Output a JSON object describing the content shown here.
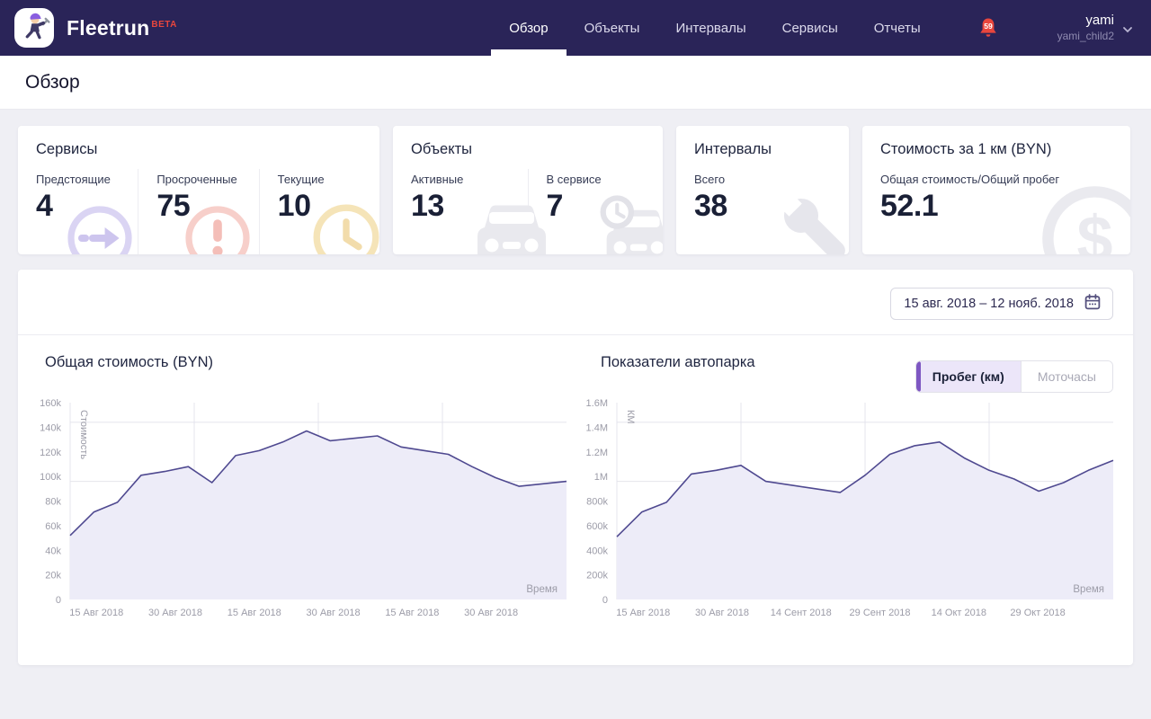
{
  "navbar": {
    "brand": "Fleetrun",
    "brand_badge": "BETA",
    "items": [
      {
        "label": "Обзор",
        "active": true
      },
      {
        "label": "Объекты",
        "active": false
      },
      {
        "label": "Интервалы",
        "active": false
      },
      {
        "label": "Сервисы",
        "active": false
      },
      {
        "label": "Отчеты",
        "active": false
      }
    ],
    "notifications_count": "59",
    "user": {
      "name": "yami",
      "account": "yami_child2"
    }
  },
  "page": {
    "title": "Обзор"
  },
  "stat_cards": [
    {
      "title": "Сервисы",
      "stats": [
        {
          "label": "Предстоящие",
          "value": "4",
          "icon": "arrow-circle-icon"
        },
        {
          "label": "Просроченные",
          "value": "75",
          "icon": "exclamation-circle-icon"
        },
        {
          "label": "Текущие",
          "value": "10",
          "icon": "clock-icon"
        }
      ]
    },
    {
      "title": "Объекты",
      "stats": [
        {
          "label": "Активные",
          "value": "13",
          "icon": "car-icon"
        },
        {
          "label": "В сервисе",
          "value": "7",
          "icon": "car-service-icon"
        }
      ]
    },
    {
      "title": "Интервалы",
      "stats": [
        {
          "label": "Всего",
          "value": "38",
          "icon": "wrench-icon"
        }
      ]
    },
    {
      "title": "Стоимость за 1 км (BYN)",
      "stats": [
        {
          "label": "Общая стоимость/Общий пробег",
          "value": "52.1",
          "icon": "dollar-circle-icon"
        }
      ]
    }
  ],
  "filters": {
    "date_range": "15 авг. 2018 – 12 нояб. 2018"
  },
  "metrics_toggle": [
    {
      "label": "Пробег (км)",
      "active": true
    },
    {
      "label": "Моточасы",
      "active": false
    }
  ],
  "chart_data": [
    {
      "type": "area",
      "title": "Общая стоимость (BYN)",
      "ylabel": "Стоимость",
      "xlabel": "Время",
      "ylim": [
        0,
        160000
      ],
      "ytick_labels": [
        "0",
        "20k",
        "40k",
        "60k",
        "80k",
        "100k",
        "120k",
        "140k",
        "160k"
      ],
      "xtick_labels": [
        "15 Авг 2018",
        "30 Авг 2018",
        "15 Авг 2018",
        "30 Авг 2018",
        "15 Авг 2018",
        "30 Авг 2018"
      ],
      "values": [
        52000,
        71000,
        79000,
        101000,
        104000,
        108000,
        95000,
        117000,
        121000,
        128000,
        137000,
        129000,
        131000,
        133000,
        124000,
        121000,
        118000,
        108000,
        99000,
        92000,
        94000,
        96000
      ],
      "grid": true,
      "legend": false,
      "line_color": "#4f4990",
      "fill_color": "#edecf8"
    },
    {
      "type": "area",
      "title": "Показатели автопарка",
      "ylabel": "КМ",
      "xlabel": "Время",
      "ylim": [
        0,
        1600000
      ],
      "ytick_labels": [
        "0",
        "200k",
        "400k",
        "600k",
        "800k",
        "1M",
        "1.2M",
        "1.4M",
        "1.6M"
      ],
      "xtick_labels": [
        "15 Авг 2018",
        "30 Авг 2018",
        "14 Сент 2018",
        "29 Сент 2018",
        "14 Окт 2018",
        "29 Окт 2018"
      ],
      "values": [
        510000,
        710000,
        790000,
        1020000,
        1050000,
        1090000,
        960000,
        930000,
        900000,
        870000,
        1010000,
        1180000,
        1250000,
        1280000,
        1150000,
        1050000,
        980000,
        880000,
        950000,
        1050000,
        1130000
      ],
      "grid": true,
      "legend": false,
      "line_color": "#4f4990",
      "fill_color": "#edecf8"
    }
  ],
  "colors": {
    "navbar_bg": "#2a2458",
    "accent_red": "#e8463d",
    "accent_purple": "#7e57c2",
    "line": "#4f4990",
    "line_fill": "#edecf8",
    "grid": "#e4e4ec",
    "axis_text": "#9c9ca8"
  }
}
